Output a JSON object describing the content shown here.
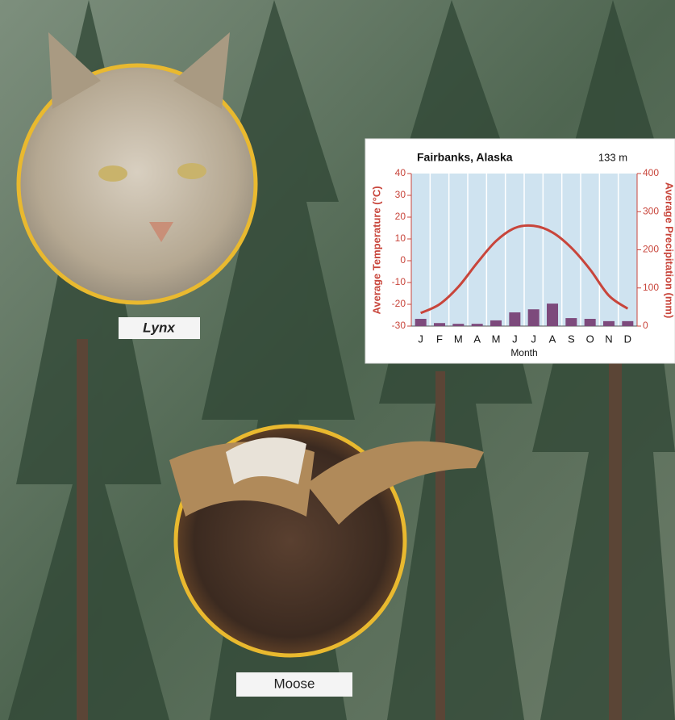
{
  "chart_data": {
    "type": "climate",
    "title": "Fairbanks, Alaska",
    "subtitle": "133 m",
    "y_label": "Average Temperature (°C)",
    "y2_label": "Average Precipitation (mm)",
    "x_label": "Month",
    "categories": [
      "J",
      "F",
      "M",
      "A",
      "M",
      "J",
      "J",
      "A",
      "S",
      "O",
      "N",
      "D"
    ],
    "series": [
      {
        "name": "Average Temperature",
        "color": "#c8453b",
        "values": [
          -24,
          -20,
          -12,
          -1,
          9,
          15,
          16,
          13,
          6,
          -4,
          -16,
          -22
        ]
      },
      {
        "name": "Average Precipitation",
        "color": "#7d4a7c",
        "axis": "y2",
        "values": [
          19,
          8,
          6,
          6,
          15,
          36,
          44,
          59,
          21,
          19,
          13,
          13
        ]
      }
    ],
    "ylim": [
      -30,
      40
    ],
    "yticks": [
      -30,
      -20,
      -10,
      0,
      10,
      20,
      30,
      40
    ],
    "y2lim": [
      0,
      400
    ],
    "y2ticks": [
      0,
      100,
      200,
      300,
      400
    ]
  },
  "animals": [
    "Lynx",
    "Moose"
  ]
}
